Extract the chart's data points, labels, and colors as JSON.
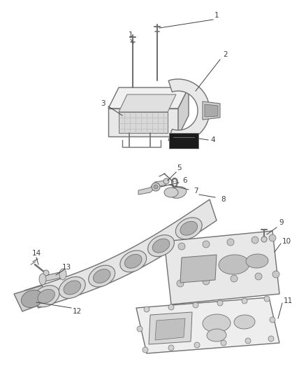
{
  "bg_color": "#ffffff",
  "lc": "#707070",
  "dc": "#404040",
  "fill_light": "#e8e8e8",
  "fill_mid": "#d0d0d0",
  "fill_dark": "#aaaaaa",
  "fill_black": "#1a1a1a"
}
